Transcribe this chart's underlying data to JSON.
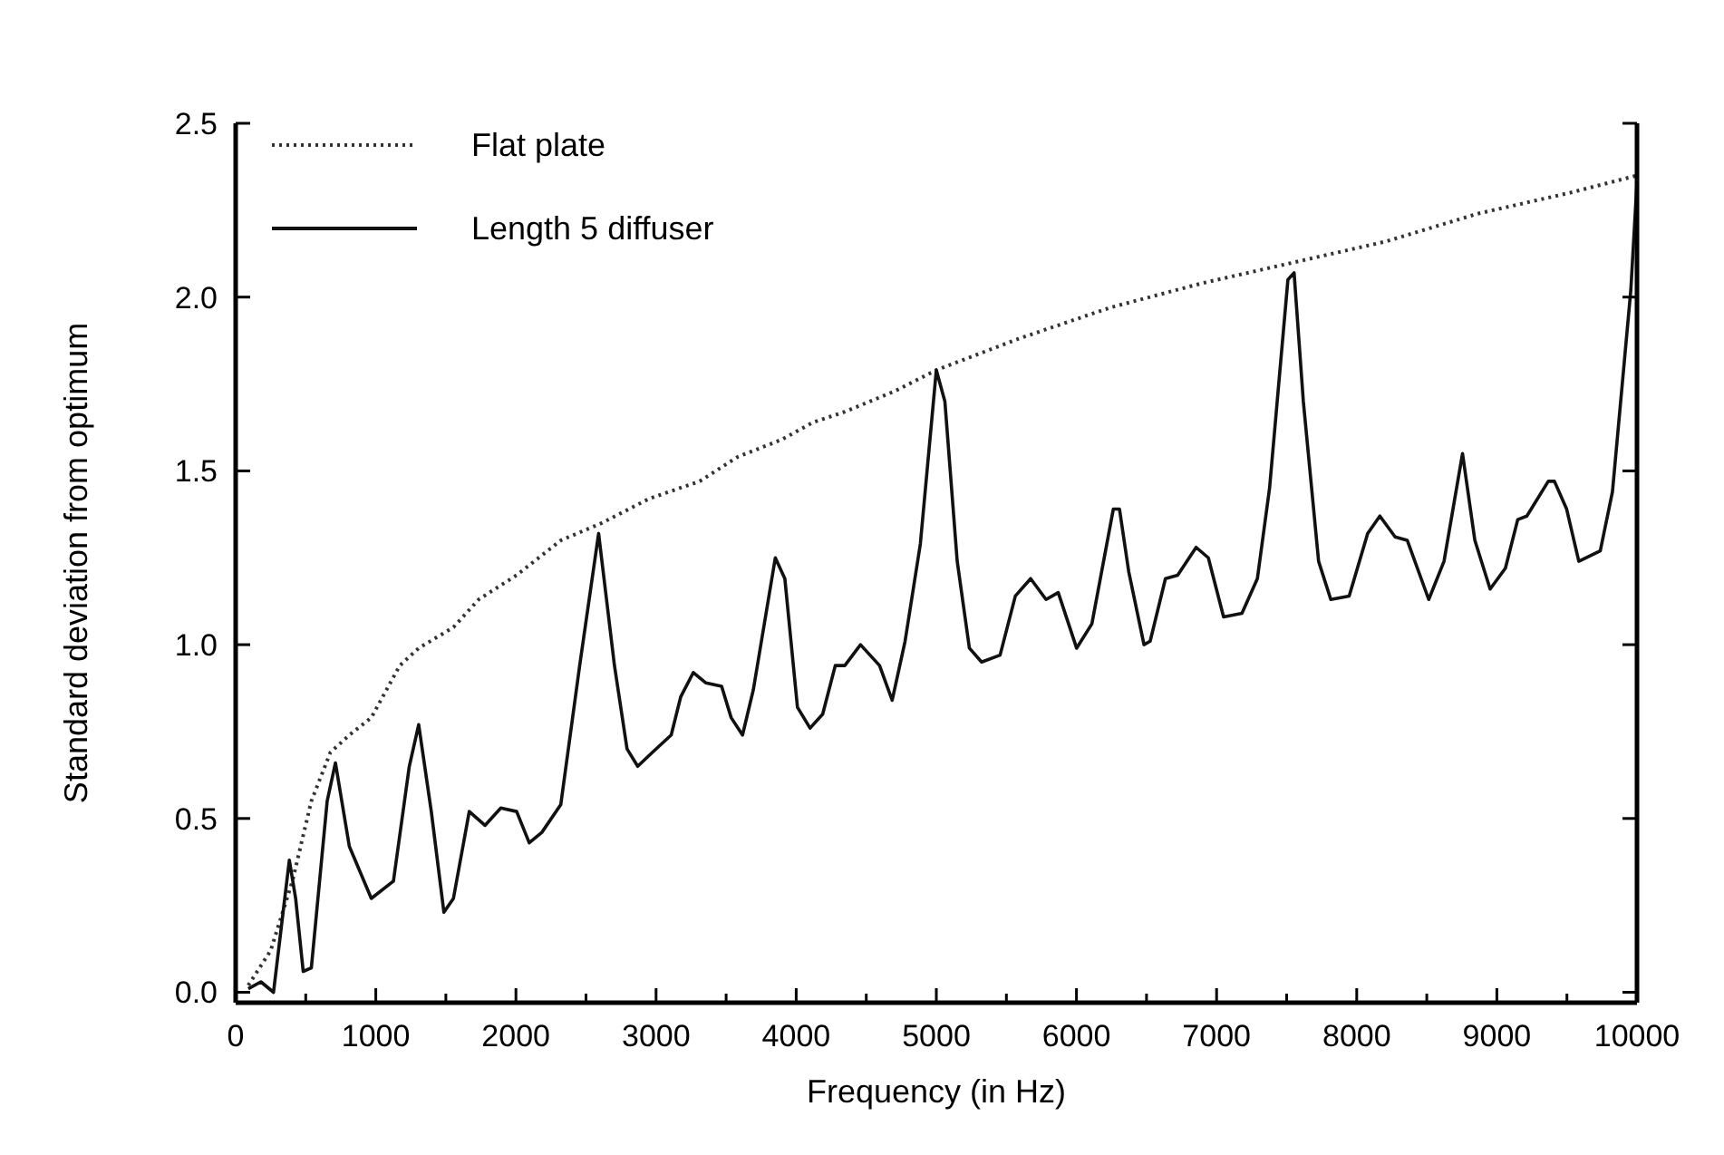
{
  "chart_data": {
    "type": "line",
    "xlabel": "Frequency (in Hz)",
    "ylabel": "Standard deviation from optimum",
    "xlim": [
      0,
      10000
    ],
    "ylim": [
      -0.03,
      2.5
    ],
    "xticks": [
      0,
      {
        "value": 500,
        "label": null
      },
      1000,
      {
        "value": 1500,
        "label": null
      },
      2000,
      {
        "value": 2500,
        "label": null
      },
      3000,
      {
        "value": 3500,
        "label": null
      },
      4000,
      {
        "value": 4500,
        "label": null
      },
      5000,
      {
        "value": 5500,
        "label": null
      },
      6000,
      {
        "value": 6500,
        "label": null
      },
      7000,
      {
        "value": 7500,
        "label": null
      },
      8000,
      {
        "value": 8500,
        "label": null
      },
      9000,
      {
        "value": 9500,
        "label": null
      },
      10000
    ],
    "yticks": [
      {
        "value": 0,
        "label": "0.0"
      },
      0.5,
      {
        "value": 1,
        "label": "1.0"
      },
      1.5,
      {
        "value": 2,
        "label": "2.0"
      },
      2.5
    ],
    "grid": false,
    "legend": "top left",
    "marker": "none",
    "series": [
      {
        "name": "Flat plate",
        "color": "#333333",
        "line_style": "dotted",
        "x": [
          90,
          250,
          405,
          540,
          676,
          811,
          968,
          1171,
          1306,
          1554,
          1734,
          2005,
          2320,
          2613,
          2950,
          3311,
          3581,
          3896,
          4122,
          4347,
          4707,
          5000,
          5586,
          6242,
          6897,
          7553,
          8208,
          8864,
          9520,
          10000
        ],
        "values": [
          0.02,
          0.12,
          0.32,
          0.55,
          0.69,
          0.74,
          0.79,
          0.94,
          0.99,
          1.05,
          1.13,
          1.2,
          1.3,
          1.35,
          1.42,
          1.47,
          1.54,
          1.59,
          1.64,
          1.67,
          1.73,
          1.79,
          1.88,
          1.97,
          2.04,
          2.1,
          2.16,
          2.24,
          2.3,
          2.35
        ]
      },
      {
        "name": "Length 5 diffuser",
        "color": "#111111",
        "line_style": "solid",
        "x": [
          90,
          180,
          270,
          383,
          428,
          482,
          540,
          653,
          712,
          811,
          968,
          1126,
          1239,
          1306,
          1396,
          1486,
          1554,
          1667,
          1779,
          1892,
          2005,
          2095,
          2185,
          2320,
          2455,
          2590,
          2703,
          2793,
          2869,
          2973,
          3108,
          3176,
          3266,
          3356,
          3468,
          3536,
          3617,
          3694,
          3851,
          3919,
          4009,
          4099,
          4189,
          4279,
          4347,
          4459,
          4595,
          4685,
          4777,
          4886,
          5000,
          5061,
          5149,
          5236,
          5323,
          5455,
          5564,
          5673,
          5783,
          5870,
          6001,
          6110,
          6263,
          6307,
          6373,
          6482,
          6526,
          6635,
          6722,
          6854,
          6941,
          7050,
          7181,
          7291,
          7378,
          7509,
          7553,
          7619,
          7728,
          7815,
          7946,
          8078,
          8165,
          8274,
          8361,
          8514,
          8623,
          8755,
          8843,
          8952,
          9061,
          9149,
          9214,
          9367,
          9411,
          9498,
          9585,
          9738,
          9825,
          9956,
          10000
        ],
        "values": [
          0.01,
          0.03,
          0,
          0.38,
          0.27,
          0.06,
          0.07,
          0.55,
          0.66,
          0.42,
          0.27,
          0.32,
          0.65,
          0.77,
          0.52,
          0.23,
          0.27,
          0.52,
          0.48,
          0.53,
          0.52,
          0.43,
          0.46,
          0.54,
          0.94,
          1.32,
          0.94,
          0.7,
          0.65,
          0.69,
          0.74,
          0.85,
          0.92,
          0.89,
          0.88,
          0.79,
          0.74,
          0.87,
          1.25,
          1.19,
          0.82,
          0.76,
          0.8,
          0.94,
          0.94,
          1,
          0.94,
          0.84,
          1.01,
          1.29,
          1.79,
          1.7,
          1.24,
          0.99,
          0.95,
          0.97,
          1.14,
          1.19,
          1.13,
          1.15,
          0.99,
          1.06,
          1.39,
          1.39,
          1.21,
          1,
          1.01,
          1.19,
          1.2,
          1.28,
          1.25,
          1.08,
          1.09,
          1.19,
          1.45,
          2.05,
          2.07,
          1.7,
          1.24,
          1.13,
          1.14,
          1.32,
          1.37,
          1.31,
          1.3,
          1.13,
          1.24,
          1.55,
          1.3,
          1.16,
          1.22,
          1.36,
          1.37,
          1.47,
          1.47,
          1.39,
          1.24,
          1.27,
          1.44,
          2.02,
          2.33
        ]
      }
    ]
  }
}
